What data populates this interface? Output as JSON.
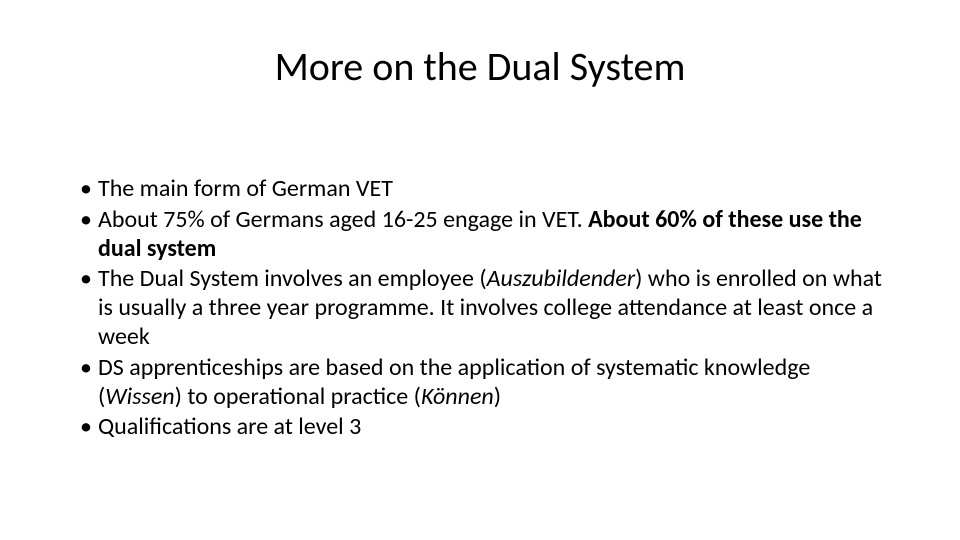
{
  "slide": {
    "title": "More on the Dual System",
    "title_fontsize": 40,
    "title_color": "#000000",
    "body_fontsize": 24,
    "body_color": "#000000",
    "background_color": "#ffffff",
    "bullets": [
      {
        "segments": [
          {
            "text": "The main form of German VET",
            "bold": false,
            "italic": false
          }
        ]
      },
      {
        "segments": [
          {
            "text": "About 75% of Germans aged 16-25 engage in VET. ",
            "bold": false,
            "italic": false
          },
          {
            "text": "About 60% of these use the dual system",
            "bold": true,
            "italic": false
          }
        ]
      },
      {
        "segments": [
          {
            "text": "The Dual System involves an employee (",
            "bold": false,
            "italic": false
          },
          {
            "text": "Auszubildender",
            "bold": false,
            "italic": true
          },
          {
            "text": ") who is enrolled on what is usually a three year programme. It involves college attendance at least once a week",
            "bold": false,
            "italic": false
          }
        ]
      },
      {
        "segments": [
          {
            "text": "DS apprenticeships are based on the application of systematic knowledge (",
            "bold": false,
            "italic": false
          },
          {
            "text": "Wissen",
            "bold": false,
            "italic": true
          },
          {
            "text": ") to operational practice (",
            "bold": false,
            "italic": false
          },
          {
            "text": "Können",
            "bold": false,
            "italic": true
          },
          {
            "text": ")",
            "bold": false,
            "italic": false
          }
        ]
      },
      {
        "segments": [
          {
            "text": "Qualifications are at level 3",
            "bold": false,
            "italic": false
          }
        ]
      }
    ]
  }
}
